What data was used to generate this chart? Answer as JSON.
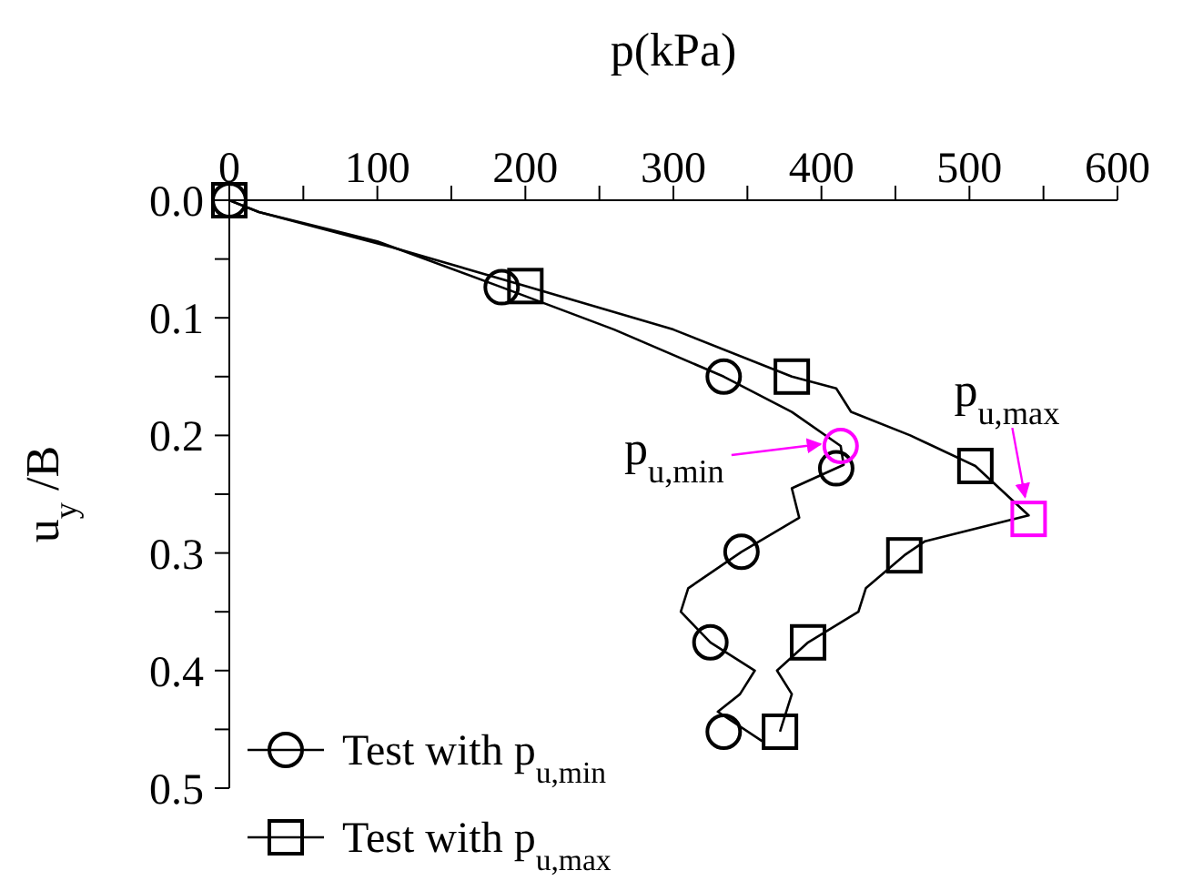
{
  "chart_data": {
    "type": "line",
    "xlabel": "p(kPa)",
    "ylabel": "u$_{y}$/B",
    "xlim": [
      0,
      600
    ],
    "xticks": [
      0,
      {
        "value": 50,
        "label": null
      },
      100,
      {
        "value": 150,
        "label": null
      },
      200,
      {
        "value": 250,
        "label": null
      },
      300,
      {
        "value": 350,
        "label": null
      },
      400,
      {
        "value": 450,
        "label": null
      },
      500,
      {
        "value": 550,
        "label": null
      },
      600
    ],
    "ylim": [
      0.5,
      0
    ],
    "yticks": [
      {
        "value": 0,
        "label": "0.0"
      },
      {
        "value": 0.05,
        "label": null
      },
      0.1,
      {
        "value": 0.15,
        "label": null
      },
      0.2,
      {
        "value": 0.25,
        "label": null
      },
      0.3,
      {
        "value": 0.35,
        "label": null
      },
      0.4,
      {
        "value": 0.45,
        "label": null
      },
      0.5
    ],
    "grid": false,
    "legend": "bottom left",
    "line_style": "solid",
    "series": [
      {
        "marker": "none",
        "color": "#000000",
        "x": [
          0,
          20,
          100,
          184,
          260,
          334,
          380,
          413,
          415,
          380,
          385,
          346,
          310,
          305,
          325,
          355,
          345,
          330,
          360
        ],
        "values": [
          0,
          0.01,
          0.035,
          0.074,
          0.11,
          0.15,
          0.18,
          0.209,
          0.225,
          0.245,
          0.27,
          0.299,
          0.33,
          0.35,
          0.376,
          0.4,
          0.42,
          0.435,
          0.46
        ]
      },
      {
        "marker": "none",
        "color": "#000000",
        "x": [
          0,
          20,
          110,
          200,
          300,
          380,
          410,
          420,
          460,
          504,
          540,
          470,
          456,
          430,
          425,
          391,
          370,
          380,
          372
        ],
        "values": [
          0,
          0.01,
          0.04,
          0.073,
          0.11,
          0.15,
          0.16,
          0.18,
          0.2,
          0.226,
          0.268,
          0.29,
          0.302,
          0.33,
          0.35,
          0.376,
          0.4,
          0.42,
          0.452
        ]
      },
      {
        "type": "scatter",
        "name": "Test with p$_{u,min}$",
        "marker": "circle",
        "color": "#000000",
        "x": [
          0,
          184,
          334,
          410,
          346,
          325,
          334
        ],
        "values": [
          0,
          0.074,
          0.15,
          0.228,
          0.299,
          0.376,
          0.452
        ]
      },
      {
        "type": "scatter",
        "name": "Test with p$_{u,max}$",
        "marker": "square",
        "color": "#000000",
        "x": [
          0,
          200,
          380,
          504,
          456,
          391,
          372
        ],
        "values": [
          0,
          0.073,
          0.15,
          0.226,
          0.302,
          0.376,
          0.452
        ]
      },
      {
        "type": "scatter",
        "marker": "circle",
        "color": "#ff00ff",
        "x": [
          413
        ],
        "values": [
          0.209
        ]
      },
      {
        "type": "scatter",
        "marker": "square",
        "color": "#ff00ff",
        "x": [
          540
        ],
        "values": [
          0.271
        ]
      }
    ],
    "annotations": [
      {
        "text": "p$_{u,min}$",
        "x": 413,
        "y": 0.209
      },
      {
        "text": "p$_{u,max}$",
        "x": 540,
        "y": 0.271
      }
    ]
  }
}
